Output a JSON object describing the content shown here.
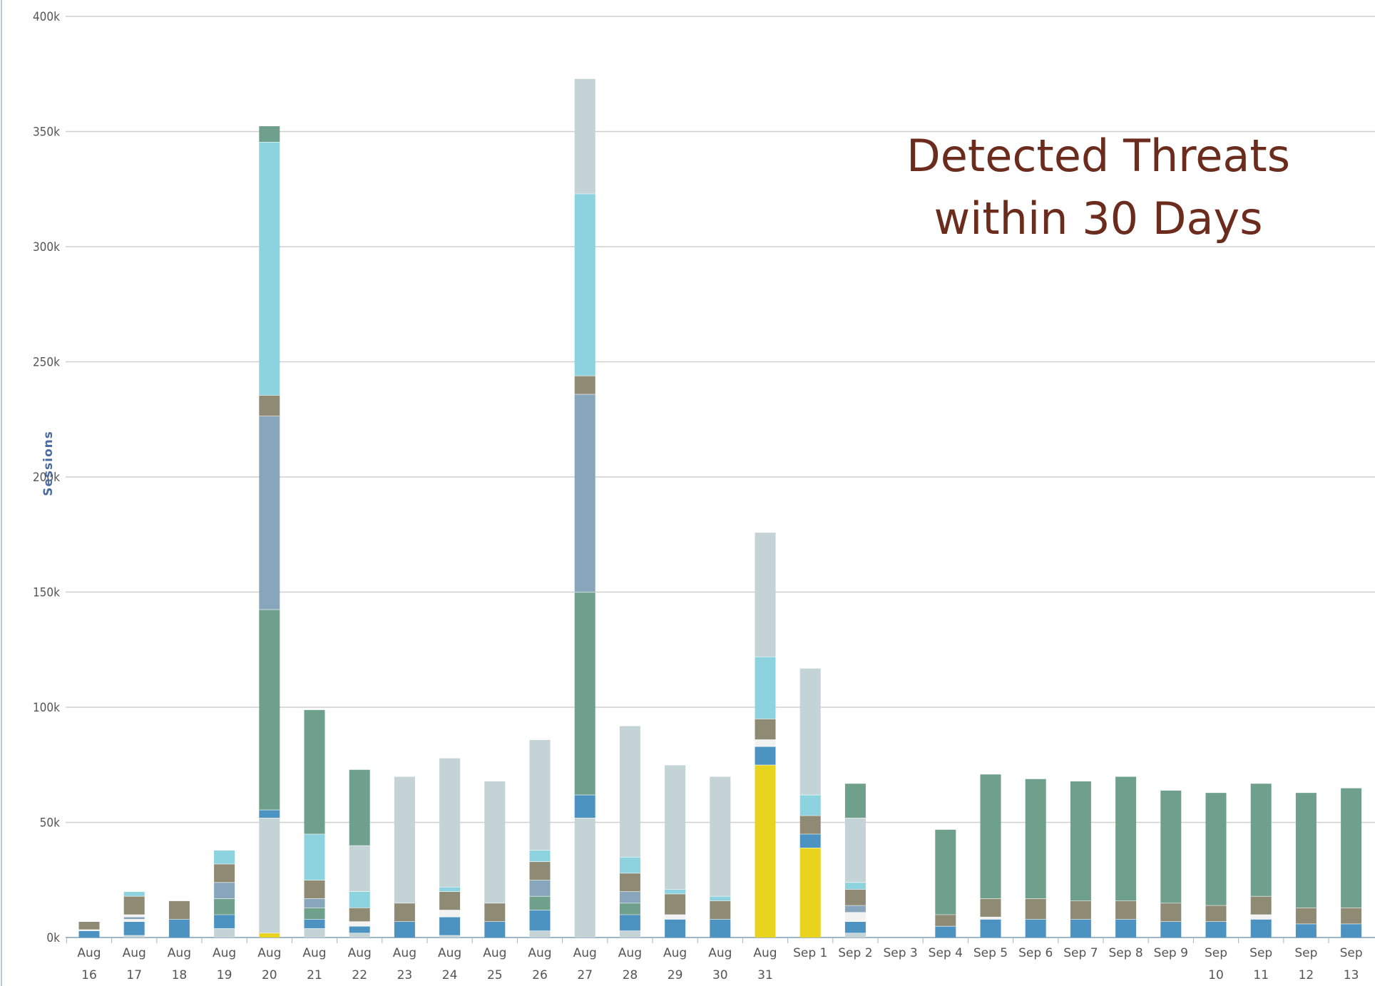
{
  "chart_data": {
    "type": "bar",
    "stacked": true,
    "title_lines": [
      "Detected Threats",
      "within 30 Days"
    ],
    "ylabel": "Sessions",
    "ylim": [
      0,
      400000
    ],
    "yticks": [
      "0k",
      "50k",
      "100k",
      "150k",
      "200k",
      "250k",
      "300k",
      "350k",
      "400k"
    ],
    "grid": true,
    "categories": [
      [
        "Aug",
        "16"
      ],
      [
        "Aug",
        "17"
      ],
      [
        "Aug",
        "18"
      ],
      [
        "Aug",
        "19"
      ],
      [
        "Aug",
        "20"
      ],
      [
        "Aug",
        "21"
      ],
      [
        "Aug",
        "22"
      ],
      [
        "Aug",
        "23"
      ],
      [
        "Aug",
        "24"
      ],
      [
        "Aug",
        "25"
      ],
      [
        "Aug",
        "26"
      ],
      [
        "Aug",
        "27"
      ],
      [
        "Aug",
        "28"
      ],
      [
        "Aug",
        "29"
      ],
      [
        "Aug",
        "30"
      ],
      [
        "Aug",
        "31"
      ],
      [
        "Sep 1"
      ],
      [
        "Sep 2"
      ],
      [
        "Sep 3"
      ],
      [
        "Sep 4"
      ],
      [
        "Sep 5"
      ],
      [
        "Sep 6"
      ],
      [
        "Sep 7"
      ],
      [
        "Sep 8"
      ],
      [
        "Sep 9"
      ],
      [
        "Sep",
        "10"
      ],
      [
        "Sep",
        "11"
      ],
      [
        "Sep",
        "12"
      ],
      [
        "Sep",
        "13"
      ]
    ],
    "segment_colors": {
      "yellow": "#e8d31f",
      "lightgray": "#c4d3d6",
      "blue": "#4d93c1",
      "white": "#f2f2f2",
      "khaki": "#8f8a74",
      "teal": "#6fa08c",
      "steel": "#87a5bb",
      "cyan": "#8dd3df"
    },
    "stacks": [
      [
        [
          "blue",
          3000
        ],
        [
          "white",
          500
        ],
        [
          "khaki",
          3500
        ]
      ],
      [
        [
          "lightgray",
          1000
        ],
        [
          "blue",
          6000
        ],
        [
          "white",
          1000
        ],
        [
          "steel",
          1000
        ],
        [
          "white",
          1000
        ],
        [
          "khaki",
          8000
        ],
        [
          "cyan",
          2000
        ]
      ],
      [
        [
          "blue",
          8000
        ],
        [
          "khaki",
          8000
        ]
      ],
      [
        [
          "lightgray",
          4000
        ],
        [
          "blue",
          6000
        ],
        [
          "teal",
          7000
        ],
        [
          "steel",
          7000
        ],
        [
          "khaki",
          8000
        ],
        [
          "cyan",
          6000
        ]
      ],
      [
        [
          "yellow",
          2000
        ],
        [
          "lightgray",
          50000
        ],
        [
          "blue",
          3500
        ],
        [
          "teal",
          87000
        ],
        [
          "steel",
          84000
        ],
        [
          "khaki",
          9000
        ],
        [
          "cyan",
          110000
        ],
        [
          "teal",
          7000
        ]
      ],
      [
        [
          "lightgray",
          4000
        ],
        [
          "blue",
          4000
        ],
        [
          "teal",
          5000
        ],
        [
          "steel",
          4000
        ],
        [
          "khaki",
          8000
        ],
        [
          "cyan",
          20000
        ],
        [
          "teal",
          54000
        ]
      ],
      [
        [
          "lightgray",
          2000
        ],
        [
          "blue",
          3000
        ],
        [
          "white",
          2000
        ],
        [
          "khaki",
          6000
        ],
        [
          "cyan",
          7000
        ],
        [
          "lightgray",
          20000
        ],
        [
          "teal",
          33000
        ]
      ],
      [
        [
          "blue",
          7000
        ],
        [
          "khaki",
          8000
        ],
        [
          "lightgray",
          55000
        ]
      ],
      [
        [
          "lightgray",
          1000
        ],
        [
          "blue",
          8000
        ],
        [
          "white",
          3000
        ],
        [
          "khaki",
          8000
        ],
        [
          "cyan",
          2000
        ],
        [
          "lightgray",
          56000
        ]
      ],
      [
        [
          "blue",
          7000
        ],
        [
          "khaki",
          8000
        ],
        [
          "lightgray",
          53000
        ]
      ],
      [
        [
          "lightgray",
          3000
        ],
        [
          "blue",
          9000
        ],
        [
          "teal",
          6000
        ],
        [
          "steel",
          7000
        ],
        [
          "khaki",
          8000
        ],
        [
          "cyan",
          5000
        ],
        [
          "lightgray",
          48000
        ]
      ],
      [
        [
          "lightgray",
          52000
        ],
        [
          "blue",
          10000
        ],
        [
          "teal",
          88000
        ],
        [
          "steel",
          86000
        ],
        [
          "khaki",
          8000
        ],
        [
          "cyan",
          79000
        ],
        [
          "lightgray",
          50000
        ]
      ],
      [
        [
          "lightgray",
          3000
        ],
        [
          "blue",
          7000
        ],
        [
          "teal",
          5000
        ],
        [
          "steel",
          5000
        ],
        [
          "khaki",
          8000
        ],
        [
          "cyan",
          7000
        ],
        [
          "lightgray",
          57000
        ]
      ],
      [
        [
          "blue",
          8000
        ],
        [
          "white",
          2000
        ],
        [
          "khaki",
          9000
        ],
        [
          "cyan",
          2000
        ],
        [
          "lightgray",
          54000
        ]
      ],
      [
        [
          "blue",
          8000
        ],
        [
          "khaki",
          8000
        ],
        [
          "cyan",
          2000
        ],
        [
          "lightgray",
          52000
        ]
      ],
      [
        [
          "yellow",
          75000
        ],
        [
          "blue",
          8000
        ],
        [
          "white",
          3000
        ],
        [
          "khaki",
          9000
        ],
        [
          "cyan",
          27000
        ],
        [
          "lightgray",
          54000
        ]
      ],
      [
        [
          "yellow",
          39000
        ],
        [
          "blue",
          6000
        ],
        [
          "khaki",
          8000
        ],
        [
          "cyan",
          9000
        ],
        [
          "lightgray",
          55000
        ]
      ],
      [
        [
          "lightgray",
          2000
        ],
        [
          "blue",
          5000
        ],
        [
          "white",
          4000
        ],
        [
          "steel",
          3000
        ],
        [
          "khaki",
          7000
        ],
        [
          "cyan",
          3000
        ],
        [
          "lightgray",
          28000
        ],
        [
          "teal",
          15000
        ]
      ],
      [],
      [
        [
          "blue",
          5000
        ],
        [
          "khaki",
          5000
        ],
        [
          "teal",
          37000
        ]
      ],
      [
        [
          "blue",
          8000
        ],
        [
          "white",
          1000
        ],
        [
          "khaki",
          8000
        ],
        [
          "teal",
          54000
        ]
      ],
      [
        [
          "blue",
          8000
        ],
        [
          "khaki",
          9000
        ],
        [
          "teal",
          52000
        ]
      ],
      [
        [
          "blue",
          8000
        ],
        [
          "khaki",
          8000
        ],
        [
          "teal",
          52000
        ]
      ],
      [
        [
          "blue",
          8000
        ],
        [
          "khaki",
          8000
        ],
        [
          "teal",
          54000
        ]
      ],
      [
        [
          "blue",
          7000
        ],
        [
          "khaki",
          8000
        ],
        [
          "teal",
          49000
        ]
      ],
      [
        [
          "blue",
          7000
        ],
        [
          "khaki",
          7000
        ],
        [
          "teal",
          49000
        ]
      ],
      [
        [
          "blue",
          8000
        ],
        [
          "white",
          2000
        ],
        [
          "khaki",
          8000
        ],
        [
          "teal",
          49000
        ]
      ],
      [
        [
          "blue",
          6000
        ],
        [
          "khaki",
          7000
        ],
        [
          "teal",
          50000
        ]
      ],
      [
        [
          "blue",
          6000
        ],
        [
          "khaki",
          7000
        ],
        [
          "teal",
          52000
        ]
      ]
    ]
  }
}
